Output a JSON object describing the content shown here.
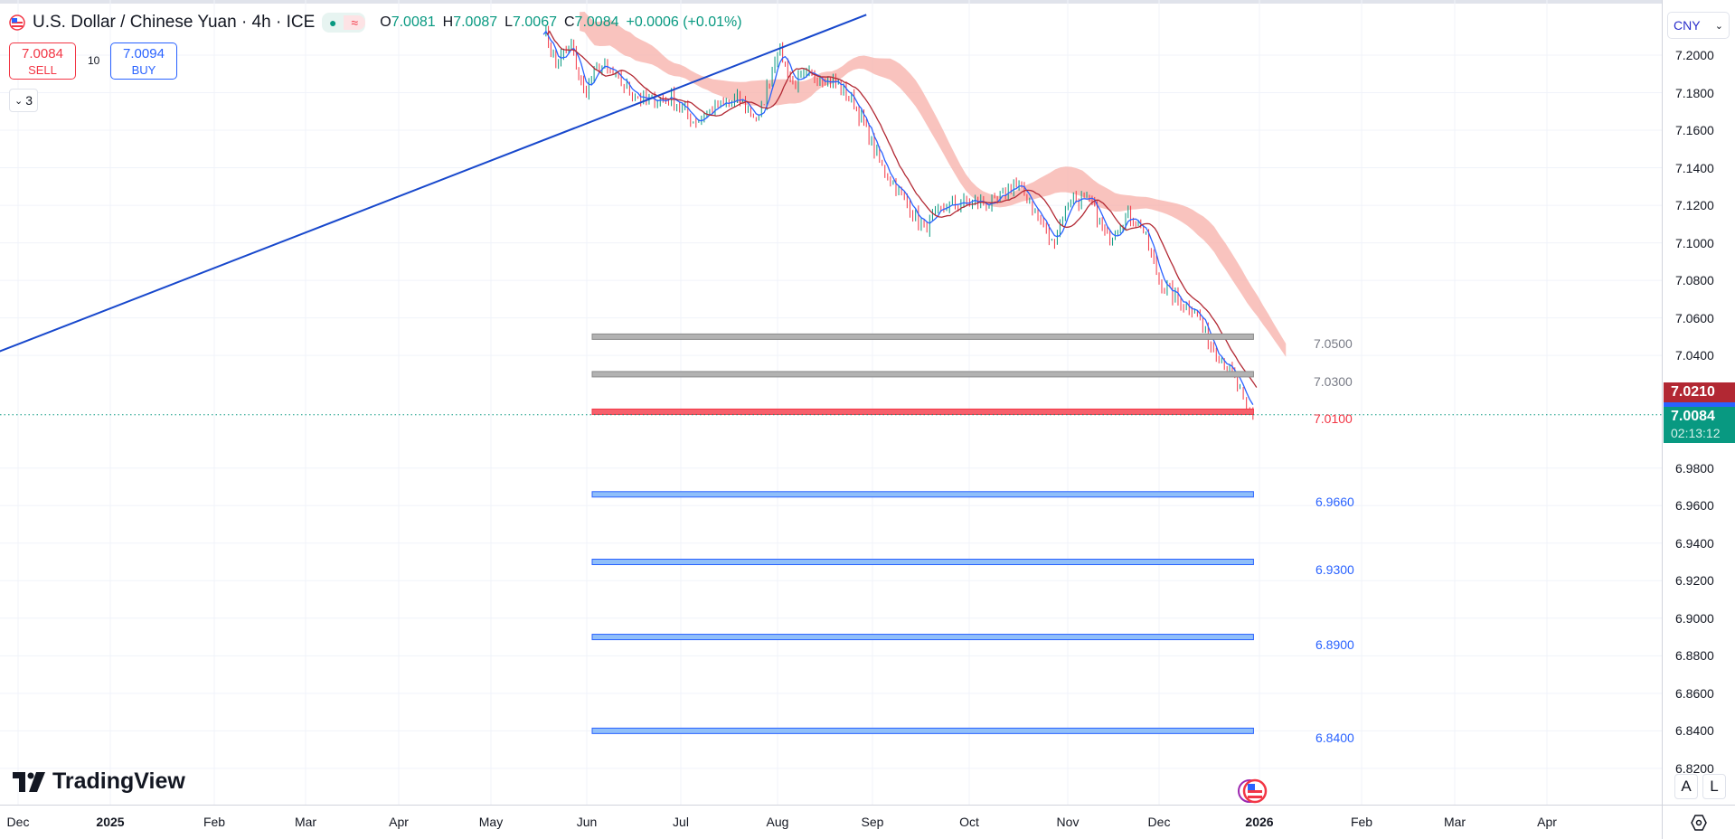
{
  "header": {
    "symbol_title": "U.S. Dollar / Chinese Yuan · 4h · ICE",
    "status_icons": [
      "market-open-dot-icon",
      "delayed-data-icon"
    ],
    "ohlc": {
      "o_label": "O",
      "o": "7.0081",
      "h_label": "H",
      "h": "7.0087",
      "l_label": "L",
      "l": "7.0067",
      "c_label": "C",
      "c": "7.0084",
      "change": "+0.0006 (+0.01%)"
    }
  },
  "trade": {
    "sell_price": "7.0084",
    "sell_label": "SELL",
    "spread": "10",
    "buy_price": "7.0094",
    "buy_label": "BUY",
    "collapse_label": "3"
  },
  "price_axis": {
    "currency": "CNY",
    "ticks": [
      "7.2000",
      "7.1800",
      "7.1600",
      "7.1400",
      "7.1200",
      "7.1000",
      "7.0800",
      "7.0600",
      "7.0400",
      "6.9800",
      "6.9600",
      "6.9400",
      "6.9200",
      "6.9000",
      "6.8800",
      "6.8600",
      "6.8400",
      "6.8200"
    ],
    "badges": {
      "line_price": "7.0210",
      "last_price": "7.0084",
      "countdown": "02:13:12"
    }
  },
  "time_axis": {
    "ticks": [
      {
        "label": "Dec",
        "date": "2024-12-01",
        "bold": false
      },
      {
        "label": "2025",
        "date": "2025-01-01",
        "bold": true
      },
      {
        "label": "Feb",
        "date": "2025-02-01",
        "bold": false
      },
      {
        "label": "Mar",
        "date": "2025-03-01",
        "bold": false
      },
      {
        "label": "Apr",
        "date": "2025-04-01",
        "bold": false
      },
      {
        "label": "May",
        "date": "2025-05-01",
        "bold": false
      },
      {
        "label": "Jun",
        "date": "2025-06-01",
        "bold": false
      },
      {
        "label": "Jul",
        "date": "2025-07-01",
        "bold": false
      },
      {
        "label": "Aug",
        "date": "2025-08-01",
        "bold": false
      },
      {
        "label": "Sep",
        "date": "2025-09-01",
        "bold": false
      },
      {
        "label": "Oct",
        "date": "2025-10-01",
        "bold": false
      },
      {
        "label": "Nov",
        "date": "2025-11-01",
        "bold": false
      },
      {
        "label": "Dec",
        "date": "2025-12-01",
        "bold": false
      },
      {
        "label": "2026",
        "date": "2026-01-01",
        "bold": true
      },
      {
        "label": "Feb",
        "date": "2026-02-01",
        "bold": false
      },
      {
        "label": "Mar",
        "date": "2026-03-01",
        "bold": false
      },
      {
        "label": "Apr",
        "date": "2026-04-01",
        "bold": false
      }
    ]
  },
  "drawings": {
    "horizontal_levels": [
      {
        "price": 7.05,
        "label": "7.0500",
        "color": "#8a8a8a",
        "fill": "#b2b2b2"
      },
      {
        "price": 7.03,
        "label": "7.0300",
        "color": "#8a8a8a",
        "fill": "#b2b2b2"
      },
      {
        "price": 7.01,
        "label": "7.0100",
        "color": "#f23645",
        "fill": "#f7606c"
      },
      {
        "price": 6.966,
        "label": "6.9660",
        "color": "#2962ff",
        "fill": "#90bff9"
      },
      {
        "price": 6.93,
        "label": "6.9300",
        "color": "#2962ff",
        "fill": "#90bff9"
      },
      {
        "price": 6.89,
        "label": "6.8900",
        "color": "#2962ff",
        "fill": "#90bff9"
      },
      {
        "price": 6.84,
        "label": "6.8400",
        "color": "#2962ff",
        "fill": "#90bff9"
      }
    ],
    "levels_start": "2025-06-01",
    "levels_end": "2025-12-31",
    "trendline": {
      "from": {
        "date": "2024-11-20",
        "price": 7.039
      },
      "to": {
        "date": "2025-08-30",
        "price": 7.2215
      },
      "color": "#1848cc"
    }
  },
  "series": {
    "price_path": [
      [
        "2025-05-18",
        7.215
      ],
      [
        "2025-05-22",
        7.195
      ],
      [
        "2025-05-27",
        7.205
      ],
      [
        "2025-05-31",
        7.18
      ],
      [
        "2025-06-05",
        7.195
      ],
      [
        "2025-06-12",
        7.185
      ],
      [
        "2025-06-20",
        7.175
      ],
      [
        "2025-06-28",
        7.178
      ],
      [
        "2025-07-05",
        7.165
      ],
      [
        "2025-07-12",
        7.172
      ],
      [
        "2025-07-20",
        7.176
      ],
      [
        "2025-07-26",
        7.165
      ],
      [
        "2025-08-01",
        7.205
      ],
      [
        "2025-08-06",
        7.185
      ],
      [
        "2025-08-14",
        7.19
      ],
      [
        "2025-08-20",
        7.185
      ],
      [
        "2025-08-26",
        7.175
      ],
      [
        "2025-08-30",
        7.16
      ],
      [
        "2025-09-04",
        7.14
      ],
      [
        "2025-09-10",
        7.125
      ],
      [
        "2025-09-17",
        7.108
      ],
      [
        "2025-09-24",
        7.12
      ],
      [
        "2025-10-02",
        7.122
      ],
      [
        "2025-10-09",
        7.12
      ],
      [
        "2025-10-15",
        7.132
      ],
      [
        "2025-10-20",
        7.122
      ],
      [
        "2025-10-27",
        7.1
      ],
      [
        "2025-11-02",
        7.125
      ],
      [
        "2025-11-09",
        7.12
      ],
      [
        "2025-11-14",
        7.102
      ],
      [
        "2025-11-20",
        7.115
      ],
      [
        "2025-11-25",
        7.11
      ],
      [
        "2025-12-01",
        7.08
      ],
      [
        "2025-12-06",
        7.07
      ],
      [
        "2025-12-12",
        7.065
      ],
      [
        "2025-12-17",
        7.045
      ],
      [
        "2025-12-22",
        7.035
      ],
      [
        "2025-12-26",
        7.02
      ],
      [
        "2025-12-28",
        7.008
      ],
      [
        "2025-12-30",
        7.0084
      ]
    ],
    "colors": {
      "up": "#089981",
      "down": "#f23645",
      "ma_fast": "#2962ff",
      "ma_slow": "#b22833",
      "cloud": "#f7a9a3",
      "last": "#089981",
      "line_badge": "#b22833"
    }
  },
  "branding": {
    "logo_text": "TradingView",
    "logo_icon": "tradingview-logo-icon"
  },
  "controls": {
    "auto_label": "A",
    "log_label": "L",
    "settings_icon": "gear-icon",
    "event_icon": "us-flag-event-icon"
  }
}
